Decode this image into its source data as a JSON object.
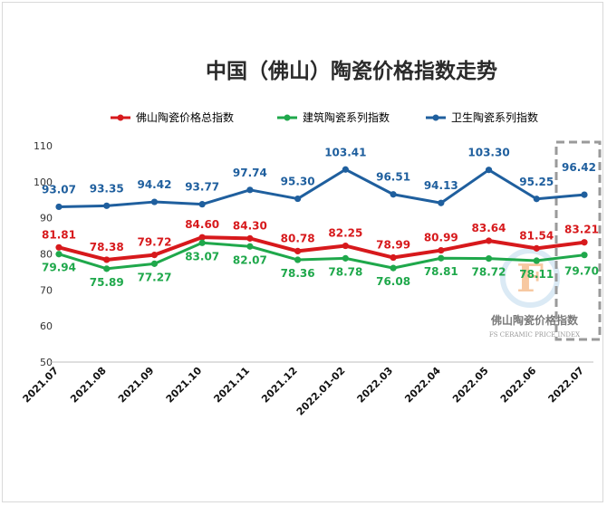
{
  "chart_data": {
    "type": "line",
    "title": "中国（佛山）陶瓷价格指数走势",
    "categories": [
      "2021.07",
      "2021.08",
      "2021.09",
      "2021.10",
      "2021.11",
      "2021.12",
      "2022.01-02",
      "2022.03",
      "2022.04",
      "2022.05",
      "2022.06",
      "2022.07"
    ],
    "ylim": [
      50,
      110
    ],
    "yticks": [
      50,
      60,
      70,
      80,
      90,
      100,
      110
    ],
    "grid": false,
    "legend_position": "top",
    "series": [
      {
        "name": "佛山陶瓷价格总指数",
        "color": "#d7191c",
        "values": [
          81.81,
          78.38,
          79.72,
          84.6,
          84.3,
          80.78,
          82.25,
          78.99,
          80.99,
          83.64,
          81.54,
          83.21
        ]
      },
      {
        "name": "建筑陶瓷系列指数",
        "color": "#1fa84b",
        "values": [
          79.94,
          75.89,
          77.27,
          83.07,
          82.07,
          78.36,
          78.78,
          76.08,
          78.81,
          78.72,
          78.11,
          79.7
        ]
      },
      {
        "name": "卫生陶瓷系列指数",
        "color": "#1f5f9e",
        "values": [
          93.07,
          93.35,
          94.42,
          93.77,
          97.74,
          95.3,
          103.41,
          96.51,
          94.13,
          103.3,
          95.25,
          96.42
        ]
      }
    ]
  },
  "watermark": {
    "text": "佛山陶瓷价格指数",
    "subtext": "FS CERAMIC PRICE INDEX",
    "logo_letter": "F"
  }
}
